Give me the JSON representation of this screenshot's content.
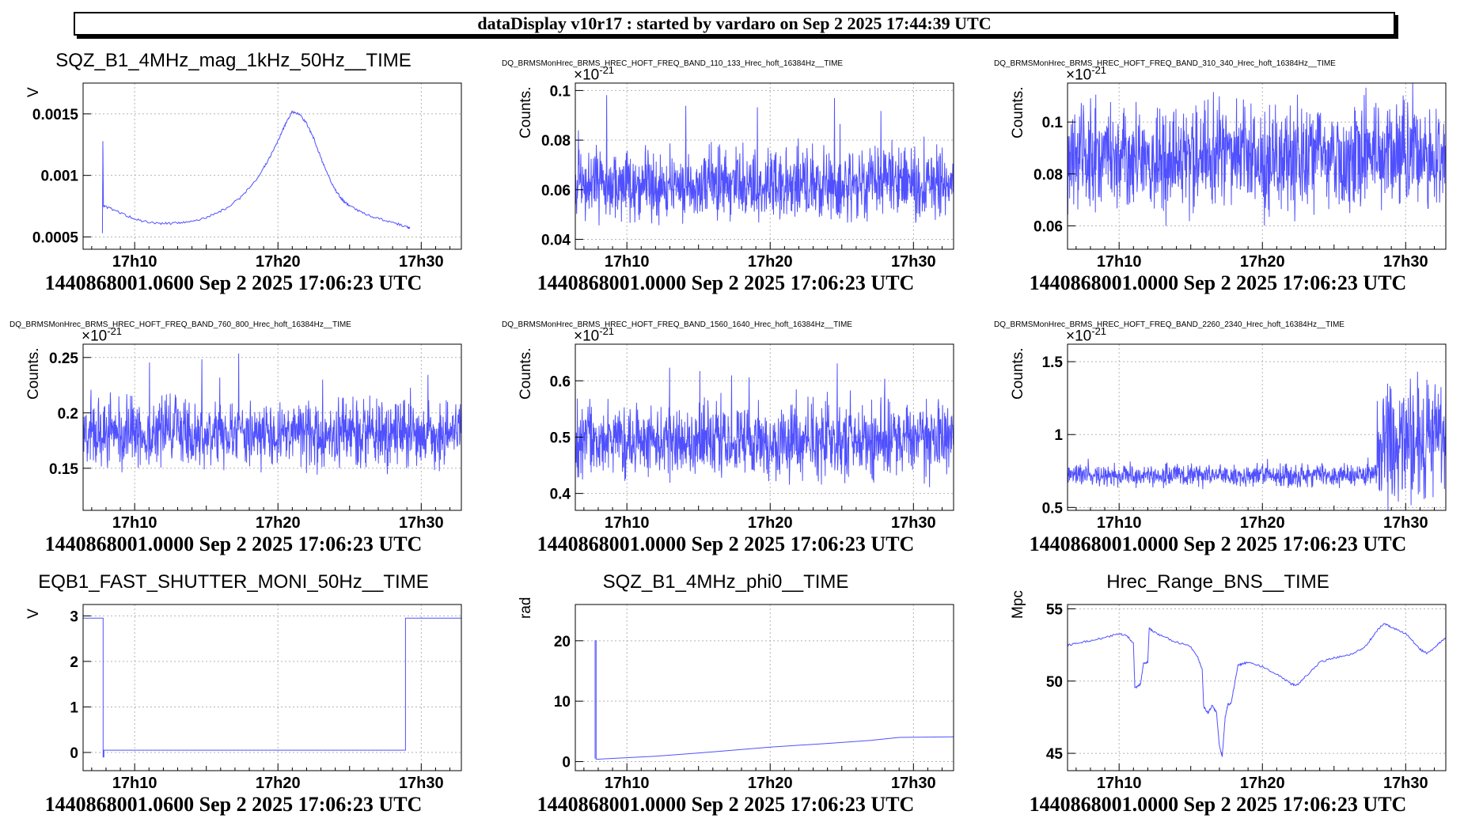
{
  "banner": "dataDisplay v10r17 : started by vardaro on Sep  2 2025 17:44:39 UTC",
  "colors": {
    "line": "#5050ff",
    "grid": "#b4b4b4"
  },
  "x_axis": {
    "min": 6.4,
    "max": 32.8,
    "ticks": [
      {
        "v": 10,
        "label": "17h10"
      },
      {
        "v": 20,
        "label": "17h20"
      },
      {
        "v": 30,
        "label": "17h30"
      }
    ]
  },
  "chart_data": [
    {
      "type": "line",
      "title": "SQZ_B1_4MHz_mag_1kHz_50Hz__TIME",
      "title_small": false,
      "ylabel": "V",
      "exponent": "",
      "ylim": [
        0.0004,
        0.00175
      ],
      "yticks": [
        {
          "v": 0.0005,
          "label": "0.0005"
        },
        {
          "v": 0.001,
          "label": "0.001"
        },
        {
          "v": 0.0015,
          "label": "0.0015"
        }
      ],
      "footer": "1440868001.0600 Sep 2 2025 17:06:23 UTC",
      "grid": true,
      "x": [
        7.75,
        7.78,
        7.82,
        7.9,
        8.5,
        9.5,
        10.5,
        11.5,
        12.5,
        13.5,
        14.5,
        15.5,
        16.5,
        17.5,
        18.5,
        19.2,
        19.8,
        20.3,
        20.7,
        21.0,
        21.5,
        22.0,
        22.5,
        23.0,
        23.5,
        24.0,
        24.5,
        25.0,
        26.0,
        27.0,
        28.0,
        29.0,
        29.2
      ],
      "y": [
        0.00052,
        0.00128,
        0.00075,
        0.00075,
        0.00072,
        0.00067,
        0.00063,
        0.00061,
        0.00061,
        0.00062,
        0.00064,
        0.00068,
        0.00074,
        0.00083,
        0.00097,
        0.0011,
        0.00123,
        0.00136,
        0.00146,
        0.00152,
        0.0015,
        0.00142,
        0.0013,
        0.00114,
        0.001,
        0.00088,
        0.0008,
        0.00075,
        0.00069,
        0.00065,
        0.00062,
        0.00058,
        0.00057
      ]
    },
    {
      "type": "line",
      "title": "DQ_BRMSMonHrec_BRMS_HREC_HOFT_FREQ_BAND_110_133_Hrec_hoft_16384Hz__TIME",
      "title_small": true,
      "ylabel": "Counts.",
      "exponent": "×10",
      "exponent_power": "-21",
      "ylim": [
        0.036,
        0.103
      ],
      "yticks": [
        {
          "v": 0.04,
          "label": "0.04"
        },
        {
          "v": 0.06,
          "label": "0.06"
        },
        {
          "v": 0.08,
          "label": "0.08"
        },
        {
          "v": 0.1,
          "label": "0.1"
        }
      ],
      "footer": "1440868001.0000 Sep 2 2025 17:06:23 UTC",
      "grid": true,
      "noise": {
        "mean": 0.062,
        "amp": 0.009,
        "spike": 0.035,
        "seed": 11
      }
    },
    {
      "type": "line",
      "title": "DQ_BRMSMonHrec_BRMS_HREC_HOFT_FREQ_BAND_310_340_Hrec_hoft_16384Hz__TIME",
      "title_small": true,
      "ylabel": "Counts.",
      "exponent": "×10",
      "exponent_power": "-21",
      "ylim": [
        0.051,
        0.115
      ],
      "yticks": [
        {
          "v": 0.06,
          "label": "0.06"
        },
        {
          "v": 0.08,
          "label": "0.08"
        },
        {
          "v": 0.1,
          "label": "0.1"
        }
      ],
      "footer": "1440868001.0000 Sep 2 2025 17:06:23 UTC",
      "grid": true,
      "noise": {
        "mean": 0.086,
        "amp": 0.012,
        "spike": 0.028,
        "seed": 23
      }
    },
    {
      "type": "line",
      "title": "DQ_BRMSMonHrec_BRMS_HREC_HOFT_FREQ_BAND_760_800_Hrec_hoft_16384Hz__TIME",
      "title_small": true,
      "ylabel": "Counts.",
      "exponent": "×10",
      "exponent_power": "-21",
      "ylim": [
        0.112,
        0.262
      ],
      "yticks": [
        {
          "v": 0.15,
          "label": "0.15"
        },
        {
          "v": 0.2,
          "label": "0.2"
        },
        {
          "v": 0.25,
          "label": "0.25"
        }
      ],
      "footer": "1440868001.0000 Sep 2 2025 17:06:23 UTC",
      "grid": true,
      "noise": {
        "mean": 0.182,
        "amp": 0.018,
        "spike": 0.07,
        "seed": 37
      }
    },
    {
      "type": "line",
      "title": "DQ_BRMSMonHrec_BRMS_HREC_HOFT_FREQ_BAND_1560_1640_Hrec_hoft_16384Hz__TIME",
      "title_small": true,
      "ylabel": "Counts.",
      "exponent": "×10",
      "exponent_power": "-21",
      "ylim": [
        0.37,
        0.665
      ],
      "yticks": [
        {
          "v": 0.4,
          "label": "0.4"
        },
        {
          "v": 0.5,
          "label": "0.5"
        },
        {
          "v": 0.6,
          "label": "0.6"
        }
      ],
      "footer": "1440868001.0000 Sep 2 2025 17:06:23 UTC",
      "grid": true,
      "noise": {
        "mean": 0.495,
        "amp": 0.04,
        "spike": 0.13,
        "seed": 53
      }
    },
    {
      "type": "line",
      "title": "DQ_BRMSMonHrec_BRMS_HREC_HOFT_FREQ_BAND_2260_2340_Hrec_hoft_16384Hz__TIME",
      "title_small": true,
      "ylabel": "Counts.",
      "exponent": "×10",
      "exponent_power": "-21",
      "ylim": [
        0.48,
        1.62
      ],
      "yticks": [
        {
          "v": 0.5,
          "label": "0.5"
        },
        {
          "v": 1,
          "label": "1"
        },
        {
          "v": 1.5,
          "label": "1.5"
        }
      ],
      "footer": "1440868001.0000 Sep 2 2025 17:06:23 UTC",
      "grid": true,
      "noise": {
        "mean": 0.72,
        "amp": 0.045,
        "spike": 0.12,
        "seed": 71,
        "burst_start": 28.0,
        "burst_mean": 0.95,
        "burst_amp": 0.25
      }
    },
    {
      "type": "line",
      "title": "EQB1_FAST_SHUTTER_MONI_50Hz__TIME",
      "title_small": false,
      "ylabel": "V",
      "exponent": "",
      "ylim": [
        -0.4,
        3.25
      ],
      "yticks": [
        {
          "v": 0,
          "label": "0"
        },
        {
          "v": 1,
          "label": "1"
        },
        {
          "v": 2,
          "label": "2"
        },
        {
          "v": 3,
          "label": "3"
        }
      ],
      "footer": "1440868001.0600 Sep 2 2025 17:06:23 UTC",
      "grid": true,
      "x": [
        6.4,
        7.8,
        7.8,
        7.85,
        7.85,
        28.9,
        28.9,
        32.8
      ],
      "y": [
        2.95,
        2.95,
        -0.1,
        -0.1,
        0.05,
        0.05,
        2.95,
        2.95
      ]
    },
    {
      "type": "line",
      "title": "SQZ_B1_4MHz_phi0__TIME",
      "title_small": false,
      "ylabel": "rad",
      "exponent": "",
      "ylim": [
        -1.5,
        26
      ],
      "yticks": [
        {
          "v": 0,
          "label": "0"
        },
        {
          "v": 10,
          "label": "10"
        },
        {
          "v": 20,
          "label": "20"
        }
      ],
      "footer": "1440868001.0000 Sep 2 2025 17:06:23 UTC",
      "grid": true,
      "x": [
        7.78,
        7.78,
        7.85,
        7.85,
        8.0,
        12,
        16,
        20,
        24,
        27,
        29,
        32.8
      ],
      "y": [
        0.5,
        20,
        20,
        0.4,
        0.4,
        0.9,
        1.6,
        2.4,
        3.0,
        3.5,
        4.0,
        4.1
      ]
    },
    {
      "type": "line",
      "title": "Hrec_Range_BNS__TIME",
      "title_small": false,
      "ylabel": "Mpc",
      "exponent": "",
      "ylim": [
        43.8,
        55.3
      ],
      "yticks": [
        {
          "v": 45,
          "label": "45"
        },
        {
          "v": 50,
          "label": "50"
        },
        {
          "v": 55,
          "label": "55"
        }
      ],
      "footer": "1440868001.0000 Sep 2 2025 17:06:23 UTC",
      "grid": true,
      "x": [
        6.4,
        7,
        8,
        9,
        10,
        10.6,
        11,
        11.1,
        11.5,
        11.7,
        12.0,
        12.1,
        12.3,
        13,
        14,
        15,
        15.5,
        15.8,
        15.9,
        16.2,
        16.5,
        16.8,
        17.0,
        17.2,
        17.4,
        17.6,
        17.8,
        18.3,
        18.6,
        19,
        20,
        21,
        22,
        22.4,
        23,
        24,
        25,
        26,
        27,
        27.5,
        28,
        28.5,
        29,
        30,
        31,
        31.5,
        32.2,
        32.8
      ],
      "y": [
        52.5,
        52.6,
        52.8,
        53.0,
        53.3,
        53.1,
        52.6,
        49.5,
        49.8,
        51.2,
        51.3,
        53.7,
        53.5,
        53.1,
        52.7,
        52.4,
        51.6,
        50.8,
        48.2,
        47.8,
        48.3,
        47.8,
        45.5,
        44.8,
        47.5,
        48.4,
        48.4,
        51.1,
        51.2,
        51.3,
        51.0,
        50.5,
        49.8,
        49.7,
        50.3,
        51.3,
        51.6,
        51.8,
        52.2,
        52.8,
        53.5,
        54.0,
        53.7,
        53.3,
        52.2,
        51.9,
        52.5,
        53.0
      ]
    }
  ]
}
